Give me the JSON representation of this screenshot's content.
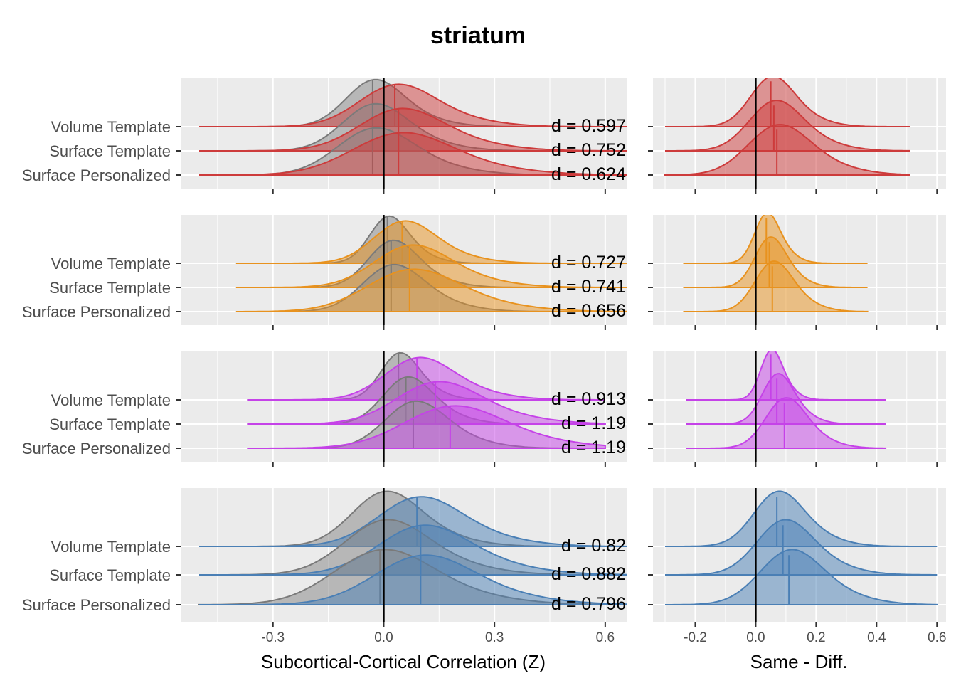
{
  "chart_data": {
    "type": "ridgeline",
    "title": "striatum",
    "conditions": [
      "Volume Template",
      "Surface Template",
      "Surface Personalized"
    ],
    "left_xlabel": "Subcortical-Cortical Correlation (Z)",
    "right_xlabel": "Same - Diff.",
    "left_xlim": [
      -0.55,
      0.66
    ],
    "right_xlim": [
      -0.34,
      0.63
    ],
    "left_ticks": [
      -0.3,
      0.0,
      0.3,
      0.6
    ],
    "left_tick_labels": [
      "-0.3",
      "0.0",
      "0.3",
      "0.6"
    ],
    "right_ticks": [
      -0.2,
      0.0,
      0.2,
      0.4,
      0.6
    ],
    "right_tick_labels": [
      "-0.2",
      "0.0",
      "0.2",
      "0.4",
      "0.6"
    ],
    "panels": [
      {
        "color": "#cd3b3b",
        "left_range": [
          -0.5,
          0.66
        ],
        "right_range": [
          -0.3,
          0.51
        ],
        "left": [
          {
            "condition": "Volume Template",
            "d_label": "d = 0.597",
            "diff_mean": -0.03,
            "same_mean": 0.03,
            "diff_sd": 0.075,
            "same_sd": 0.1
          },
          {
            "condition": "Surface Template",
            "d_label": "d = 0.752",
            "diff_mean": -0.03,
            "same_mean": 0.04,
            "diff_sd": 0.085,
            "same_sd": 0.11
          },
          {
            "condition": "Surface Personalized",
            "d_label": "d = 0.624",
            "diff_mean": -0.03,
            "same_mean": 0.04,
            "diff_sd": 0.1,
            "same_sd": 0.13
          }
        ],
        "right": [
          {
            "condition": "Volume Template",
            "mean": 0.05,
            "sd": 0.07
          },
          {
            "condition": "Surface Template",
            "mean": 0.06,
            "sd": 0.085
          },
          {
            "condition": "Surface Personalized",
            "mean": 0.07,
            "sd": 0.1
          }
        ]
      },
      {
        "color": "#e8921e",
        "left_range": [
          -0.4,
          0.66
        ],
        "right_range": [
          -0.24,
          0.37
        ],
        "left": [
          {
            "condition": "Volume Template",
            "d_label": "d = 0.727",
            "diff_mean": 0.01,
            "same_mean": 0.05,
            "diff_sd": 0.05,
            "same_sd": 0.08
          },
          {
            "condition": "Surface Template",
            "d_label": "d = 0.741",
            "diff_mean": 0.02,
            "same_mean": 0.07,
            "diff_sd": 0.065,
            "same_sd": 0.1
          },
          {
            "condition": "Surface Personalized",
            "d_label": "d = 0.656",
            "diff_mean": 0.02,
            "same_mean": 0.07,
            "diff_sd": 0.08,
            "same_sd": 0.12
          }
        ],
        "right": [
          {
            "condition": "Volume Template",
            "mean": 0.035,
            "sd": 0.04
          },
          {
            "condition": "Surface Template",
            "mean": 0.045,
            "sd": 0.05
          },
          {
            "condition": "Surface Personalized",
            "mean": 0.055,
            "sd": 0.06
          }
        ]
      },
      {
        "color": "#c542e8",
        "left_range": [
          -0.37,
          0.6
        ],
        "right_range": [
          -0.23,
          0.43
        ],
        "left": [
          {
            "condition": "Volume Template",
            "d_label": "d = 0.913",
            "diff_mean": 0.04,
            "same_mean": 0.09,
            "diff_sd": 0.05,
            "same_sd": 0.09
          },
          {
            "condition": "Surface Template",
            "d_label": "d = 1.19",
            "diff_mean": 0.06,
            "same_mean": 0.14,
            "diff_sd": 0.065,
            "same_sd": 0.11
          },
          {
            "condition": "Surface Personalized",
            "d_label": "d = 1.19",
            "diff_mean": 0.08,
            "same_mean": 0.18,
            "diff_sd": 0.08,
            "same_sd": 0.13
          }
        ],
        "right": [
          {
            "condition": "Volume Template",
            "mean": 0.05,
            "sd": 0.035
          },
          {
            "condition": "Surface Template",
            "mean": 0.07,
            "sd": 0.05
          },
          {
            "condition": "Surface Personalized",
            "mean": 0.095,
            "sd": 0.065
          }
        ]
      },
      {
        "color": "#4a7fb5",
        "left_range": [
          -0.5,
          0.66
        ],
        "right_range": [
          -0.3,
          0.6
        ],
        "left": [
          {
            "condition": "Volume Template",
            "d_label": "d = 0.82",
            "diff_mean": 0.0,
            "same_mean": 0.09,
            "diff_sd": 0.09,
            "same_sd": 0.11
          },
          {
            "condition": "Surface Template",
            "d_label": "d = 0.882",
            "diff_mean": 0.0,
            "same_mean": 0.1,
            "diff_sd": 0.11,
            "same_sd": 0.12
          },
          {
            "condition": "Surface Personalized",
            "d_label": "d = 0.796",
            "diff_mean": -0.01,
            "same_mean": 0.1,
            "diff_sd": 0.13,
            "same_sd": 0.13
          }
        ],
        "right": [
          {
            "condition": "Volume Template",
            "mean": 0.07,
            "sd": 0.08
          },
          {
            "condition": "Surface Template",
            "mean": 0.09,
            "sd": 0.09
          },
          {
            "condition": "Surface Personalized",
            "mean": 0.11,
            "sd": 0.1
          }
        ]
      }
    ]
  }
}
